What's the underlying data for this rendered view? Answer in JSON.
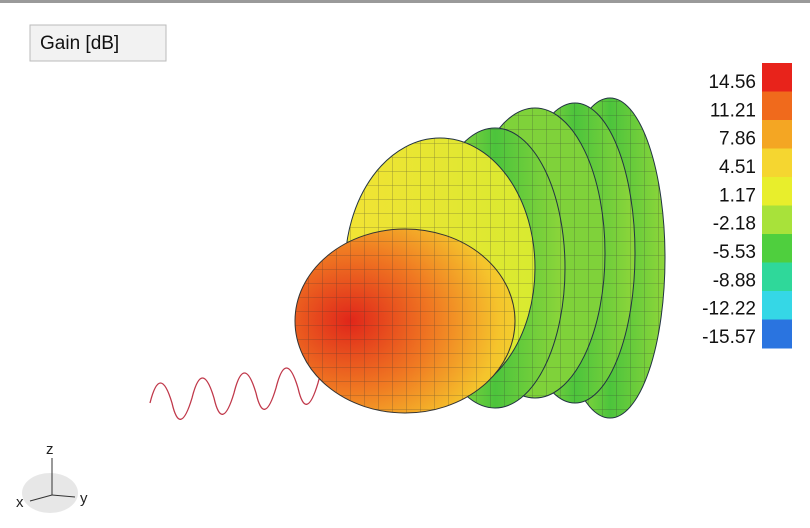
{
  "panel": {
    "title": "Gain [dB]"
  },
  "legend": {
    "labels": [
      "14.56",
      "11.21",
      "7.86",
      "4.51",
      "1.17",
      "-2.18",
      "-5.53",
      "-8.88",
      "-12.22",
      "-15.57"
    ],
    "colors": [
      "#e8231b",
      "#f06a1c",
      "#f4a623",
      "#f5d630",
      "#e8ee2c",
      "#a8e23a",
      "#4fcf3e",
      "#2fd89a",
      "#35d7e6",
      "#2a74e0"
    ]
  },
  "axes": {
    "z": "z",
    "x": "x",
    "y": "y"
  }
}
